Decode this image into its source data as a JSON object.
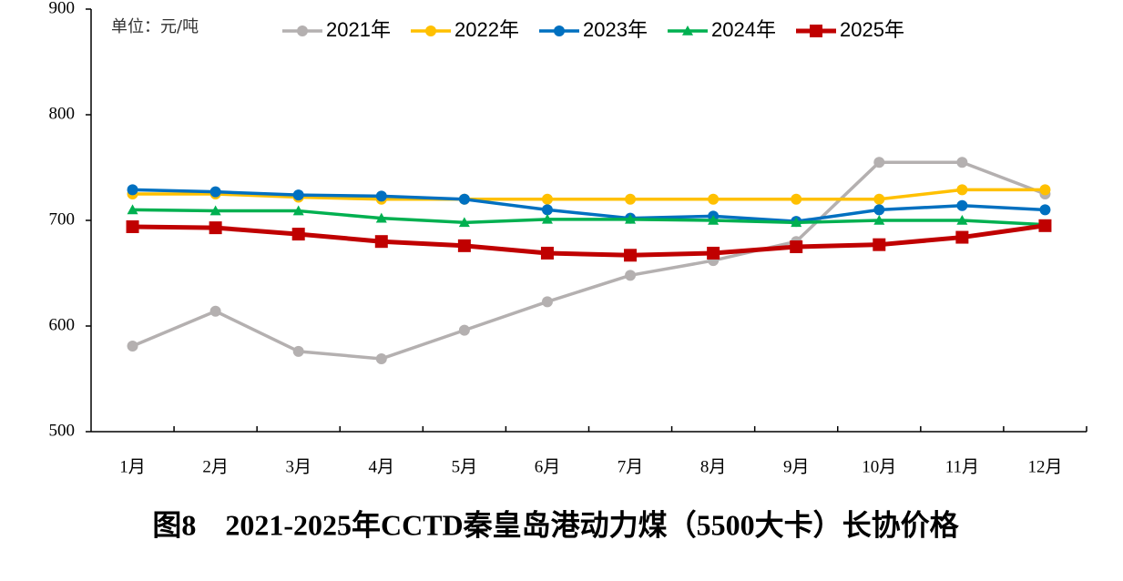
{
  "chart_data": {
    "type": "line",
    "title": "图8　2021-2025年CCTD秦皇岛港动力煤（5500大卡）长协价格",
    "unit_label": "单位：元/吨",
    "categories": [
      "1月",
      "2月",
      "3月",
      "4月",
      "5月",
      "6月",
      "7月",
      "8月",
      "9月",
      "10月",
      "11月",
      "12月"
    ],
    "series": [
      {
        "name": "2021年",
        "color": "#b4b0b0",
        "marker": "circle",
        "values": [
          581,
          614,
          576,
          569,
          596,
          623,
          648,
          662,
          680,
          755,
          755,
          725
        ]
      },
      {
        "name": "2022年",
        "color": "#ffc000",
        "marker": "circle",
        "values": [
          725,
          725,
          722,
          720,
          720,
          720,
          720,
          720,
          720,
          720,
          729,
          729
        ]
      },
      {
        "name": "2023年",
        "color": "#0070c0",
        "marker": "circle",
        "values": [
          729,
          727,
          724,
          723,
          720,
          710,
          702,
          704,
          699,
          710,
          714,
          710
        ]
      },
      {
        "name": "2024年",
        "color": "#00b050",
        "marker": "triangle",
        "values": [
          710,
          709,
          709,
          702,
          698,
          701,
          701,
          700,
          698,
          700,
          700,
          696
        ]
      },
      {
        "name": "2025年",
        "color": "#c00000",
        "marker": "square",
        "values": [
          694,
          693,
          687,
          680,
          676,
          669,
          667,
          669,
          675,
          677,
          684,
          695
        ]
      }
    ],
    "ylim": [
      500,
      900
    ],
    "yticks": [
      500,
      600,
      700,
      800,
      900
    ],
    "grid": false
  }
}
